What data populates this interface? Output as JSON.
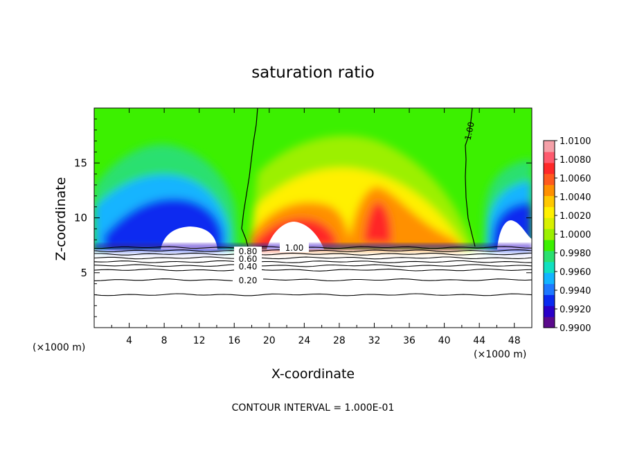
{
  "chart_data": {
    "type": "heatmap",
    "title": "saturation ratio",
    "xlabel": "X-coordinate",
    "ylabel": "Z-coordinate",
    "x_units": "(×1000 m)",
    "footer": "CONTOUR INTERVAL = 1.000E-01",
    "xlim": [
      0,
      50
    ],
    "ylim": [
      0,
      20
    ],
    "x_ticks": [
      4,
      8,
      12,
      16,
      20,
      24,
      28,
      32,
      36,
      40,
      44,
      48
    ],
    "y_ticks": [
      5,
      10,
      15
    ],
    "colorbar": {
      "min": 0.99,
      "max": 1.01,
      "tick_labels": [
        "1.0100",
        "1.0080",
        "1.0060",
        "1.0040",
        "1.0020",
        "1.0000",
        "0.9980",
        "0.9960",
        "0.9940",
        "0.9920",
        "0.9900"
      ],
      "colors": [
        "#5b0a8c",
        "#2a00c8",
        "#0a2af0",
        "#1e78ff",
        "#12b4ff",
        "#10e0c0",
        "#2ae070",
        "#3cf000",
        "#9cf000",
        "#d8f000",
        "#fff000",
        "#ffc800",
        "#ff9000",
        "#ff5a1e",
        "#ff2828",
        "#ff5a6e",
        "#f5a0a8"
      ]
    },
    "contour_labels": [
      "1.00",
      "1.00",
      "0.80",
      "0.60",
      "0.40",
      "0.20"
    ],
    "contour_levels": [
      0.2,
      0.3,
      0.4,
      0.5,
      0.6,
      0.7,
      0.8,
      0.9,
      1.0
    ],
    "contour_heights": [
      3.0,
      4.35,
      5.25,
      5.65,
      6.0,
      6.35,
      6.7,
      7.0,
      7.3
    ],
    "cloud_base_height": 7.4,
    "unsaturated_columns_x": [
      17.5,
      43.5
    ]
  }
}
